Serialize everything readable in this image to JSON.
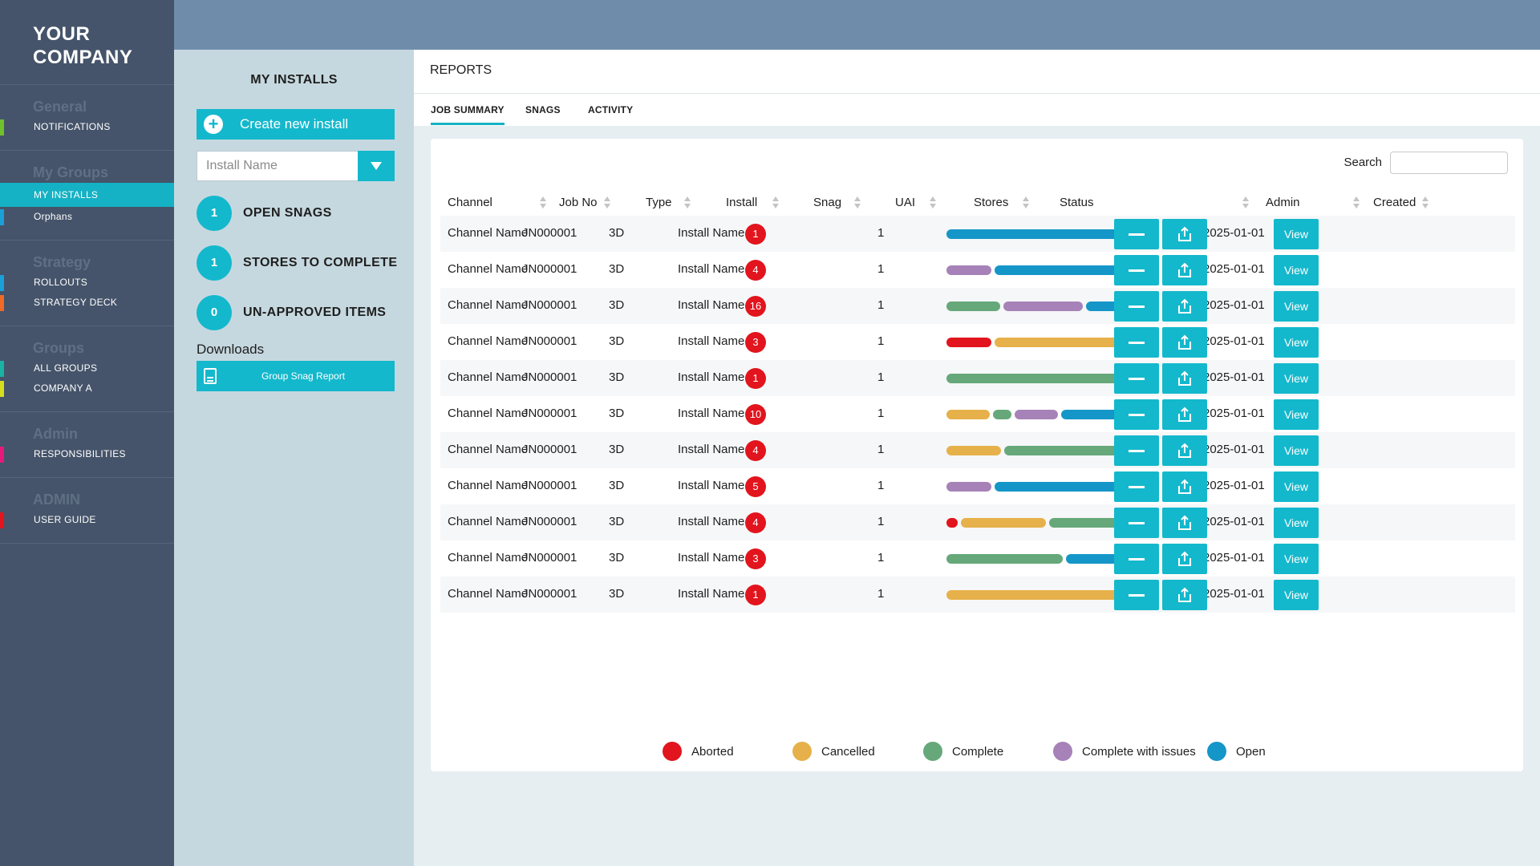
{
  "brand": {
    "line1": "YOUR",
    "line2": "COMPANY"
  },
  "sidebar": {
    "groups": [
      {
        "heading": "General",
        "items": [
          {
            "label": "NOTIFICATIONS",
            "color": "#6fc22a"
          }
        ]
      },
      {
        "heading": "My Groups",
        "items": [
          {
            "label": "MY INSTALLS",
            "active": true
          },
          {
            "label": "Orphans",
            "color": "#1aa0d8"
          }
        ]
      },
      {
        "heading": "Strategy",
        "items": [
          {
            "label": "ROLLOUTS",
            "color": "#1aa0d8"
          },
          {
            "label": "STRATEGY DECK",
            "color": "#f06a25"
          }
        ]
      },
      {
        "heading": "Groups",
        "items": [
          {
            "label": "ALL GROUPS",
            "color": "#19b3a4"
          },
          {
            "label": "COMPANY A",
            "color": "#d4de1e"
          }
        ]
      },
      {
        "heading": "Admin",
        "items": [
          {
            "label": "RESPONSIBILITIES",
            "color": "#e8197d"
          }
        ]
      },
      {
        "heading": "ADMIN",
        "items": [
          {
            "label": "USER GUIDE",
            "color": "#e2141d"
          }
        ]
      }
    ]
  },
  "installs_panel": {
    "title": "MY INSTALLS",
    "create_label": "Create new install",
    "select_placeholder": "Install Name",
    "stats": [
      {
        "value": "1",
        "label": "OPEN SNAGS"
      },
      {
        "value": "1",
        "label": "STORES TO COMPLETE"
      },
      {
        "value": "0",
        "label": "UN-APPROVED ITEMS"
      }
    ],
    "downloads_label": "Downloads",
    "report_button": "Group Snag Report"
  },
  "reports": {
    "title": "REPORTS",
    "tabs": [
      "JOB SUMMARY",
      "SNAGS",
      "ACTIVITY"
    ],
    "active_tab": 0,
    "search_label": "Search"
  },
  "table": {
    "columns": [
      "Channel",
      "Job No",
      "Type",
      "Install",
      "Snag",
      "UAI",
      "Stores",
      "Status",
      "Admin",
      "Created"
    ],
    "view_label": "View",
    "rows": [
      {
        "channel": "Channel Name",
        "job_no": "JN000001",
        "type": "3D",
        "install": "Install Name",
        "snag": "1",
        "stores": "1",
        "created": "2025-01-01",
        "status": [
          {
            "state": "Open",
            "share": 1.0
          }
        ]
      },
      {
        "channel": "Channel Name",
        "job_no": "JN000001",
        "type": "3D",
        "install": "Install Name",
        "snag": "4",
        "stores": "1",
        "created": "2025-01-01",
        "status": [
          {
            "state": "Complete with issues",
            "share": 0.24
          },
          {
            "state": "Open",
            "share": 0.76
          }
        ]
      },
      {
        "channel": "Channel Name",
        "job_no": "JN000001",
        "type": "3D",
        "install": "Install Name",
        "snag": "16",
        "stores": "1",
        "created": "2025-01-01",
        "status": [
          {
            "state": "Complete",
            "share": 0.29
          },
          {
            "state": "Complete with issues",
            "share": 0.43
          },
          {
            "state": "Open",
            "share": 0.28
          }
        ]
      },
      {
        "channel": "Channel Name",
        "job_no": "JN000001",
        "type": "3D",
        "install": "Install Name",
        "snag": "3",
        "stores": "1",
        "created": "2025-01-01",
        "status": [
          {
            "state": "Aborted",
            "share": 0.24
          },
          {
            "state": "Cancelled",
            "share": 0.76
          }
        ]
      },
      {
        "channel": "Channel Name",
        "job_no": "JN000001",
        "type": "3D",
        "install": "Install Name",
        "snag": "1",
        "stores": "1",
        "created": "2025-01-01",
        "status": [
          {
            "state": "Complete",
            "share": 1.0
          }
        ]
      },
      {
        "channel": "Channel Name",
        "job_no": "JN000001",
        "type": "3D",
        "install": "Install Name",
        "snag": "10",
        "stores": "1",
        "created": "2025-01-01",
        "status": [
          {
            "state": "Cancelled",
            "share": 0.24
          },
          {
            "state": "Complete",
            "share": 0.1
          },
          {
            "state": "Complete with issues",
            "share": 0.24
          },
          {
            "state": "Open",
            "share": 0.42
          }
        ]
      },
      {
        "channel": "Channel Name",
        "job_no": "JN000001",
        "type": "3D",
        "install": "Install Name",
        "snag": "4",
        "stores": "1",
        "created": "2025-01-01",
        "status": [
          {
            "state": "Cancelled",
            "share": 0.29
          },
          {
            "state": "Complete",
            "share": 0.71
          }
        ]
      },
      {
        "channel": "Channel Name",
        "job_no": "JN000001",
        "type": "3D",
        "install": "Install Name",
        "snag": "5",
        "stores": "1",
        "created": "2025-01-01",
        "status": [
          {
            "state": "Complete with issues",
            "share": 0.24
          },
          {
            "state": "Open",
            "share": 0.76
          }
        ]
      },
      {
        "channel": "Channel Name",
        "job_no": "JN000001",
        "type": "3D",
        "install": "Install Name",
        "snag": "4",
        "stores": "1",
        "created": "2025-01-01",
        "status": [
          {
            "state": "Aborted",
            "share": 0.06
          },
          {
            "state": "Cancelled",
            "share": 0.46
          },
          {
            "state": "Complete",
            "share": 0.48
          }
        ]
      },
      {
        "channel": "Channel Name",
        "job_no": "JN000001",
        "type": "3D",
        "install": "Install Name",
        "snag": "3",
        "stores": "1",
        "created": "2025-01-01",
        "status": [
          {
            "state": "Complete",
            "share": 0.62
          },
          {
            "state": "Open",
            "share": 0.38
          }
        ]
      },
      {
        "channel": "Channel Name",
        "job_no": "JN000001",
        "type": "3D",
        "install": "Install Name",
        "snag": "1",
        "stores": "1",
        "created": "2025-01-01",
        "status": [
          {
            "state": "Cancelled",
            "share": 1.0
          }
        ]
      }
    ]
  },
  "legend": [
    {
      "label": "Aborted",
      "color": "#e2141d"
    },
    {
      "label": "Cancelled",
      "color": "#e6b14a"
    },
    {
      "label": "Complete",
      "color": "#66a87a"
    },
    {
      "label": "Complete with issues",
      "color": "#a682b8"
    },
    {
      "label": "Open",
      "color": "#1596c8"
    }
  ]
}
